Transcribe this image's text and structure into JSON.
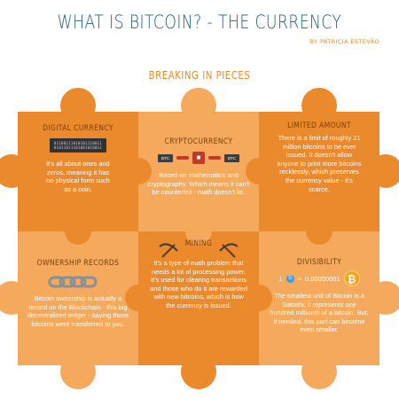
{
  "header": {
    "title": "WHAT IS BITCOIN? - THE CURRENCY",
    "byline": "BY PATRICIA ESTEVÃO",
    "subtitle": "BREAKING IN PIECES"
  },
  "colors": {
    "dark_orange": "#ea8a2c",
    "light_orange": "#f4a95c",
    "title_blue": "#23607a",
    "piece_title_brown": "#7a3e0d"
  },
  "pieces": {
    "digital": {
      "title": "DIGITAL CURRENCY",
      "binary": "01100111010101110011\n01011011101001010011",
      "text": "it's all about ones and zeros, meaning it has no physical form such as a coin."
    },
    "crypto": {
      "title": "CRYPTOCURRENCY",
      "block_left": "BTC",
      "block_right": "BTC",
      "text": "Based on mathematics and cryptography. Which means it can't be counterfeit - math doesn't lie."
    },
    "limited": {
      "title": "LIMITED AMOUNT",
      "text": "There is a limit of roughly 21 million bitcoins to be ever issued. It doesn't allow anyone to print more bitcoins recklessly, which preserves the currency value - it's scarce."
    },
    "ownership": {
      "title": "OWNERSHIP RECORDS",
      "text": "Bitcoin ownership is actually a record on the Blockchain - this big decentralized ledger - saying those bitcoins were transferred to you."
    },
    "mining": {
      "title": "MINING",
      "text": "It's a type of math problem that needs a lot of processing power. It's used for clearing transactions and those who do it are rewarded with new bitcoins, which is how the currency is issued."
    },
    "divisibility": {
      "title": "DIVISIBILITY",
      "equation_left": "1",
      "coin_s": "S",
      "equals": "=",
      "equation_right": "0.00000001",
      "coin_b": "₿",
      "text": "The smallest unit of Bitcoin is a Satoshi, it represents one hundred millionth of a bitcoin. But, if needed, this part can become even smaller."
    }
  }
}
